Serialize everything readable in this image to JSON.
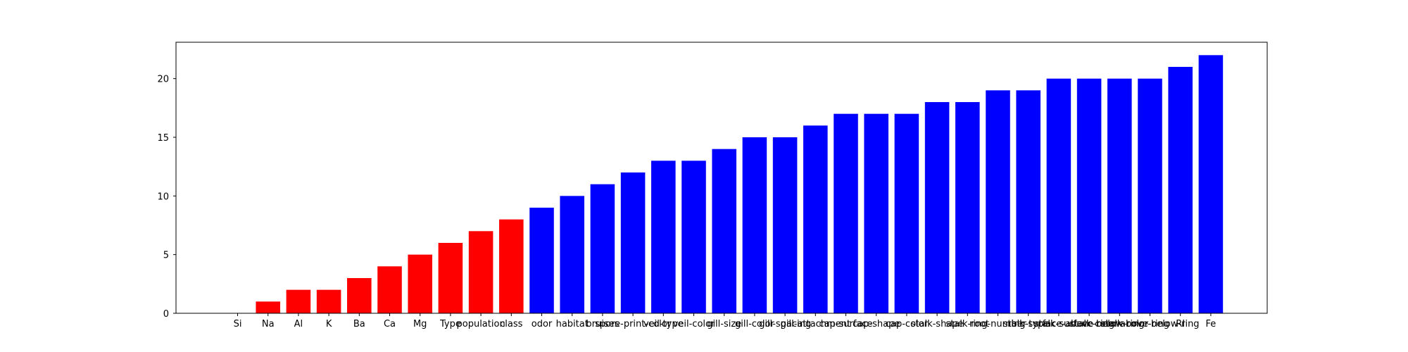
{
  "chart_data": {
    "type": "bar",
    "title": "",
    "xlabel": "",
    "ylabel": "",
    "ylim": [
      0,
      23.1
    ],
    "yticks": [
      0,
      5,
      10,
      15,
      20
    ],
    "grid": false,
    "categories": [
      "Si",
      "Na",
      "Al",
      "K",
      "Ba",
      "Ca",
      "Mg",
      "Type",
      "population",
      "class",
      "odor",
      "habitat",
      "bruises",
      "spore-print-color",
      "veil-type",
      "veil-color",
      "gill-size",
      "gill-color",
      "gill-spacing",
      "gill-attachment",
      "cap-surface",
      "cap-shape",
      "cap-color",
      "stalk-shape",
      "stalk-root",
      "ring-number",
      "ring-type",
      "stalk-surface-above-ring",
      "stalk-surface-below-ring",
      "stalk-color-above-ring",
      "stalk-color-below-ring",
      "RI",
      "Fe"
    ],
    "values": [
      0,
      1,
      2,
      2,
      3,
      4,
      5,
      6,
      7,
      8,
      9,
      10,
      11,
      12,
      13,
      13,
      14,
      15,
      15,
      16,
      17,
      17,
      17,
      18,
      18,
      19,
      19,
      20,
      20,
      20,
      20,
      21,
      22
    ],
    "bar_colors": [
      "#ff0000",
      "#ff0000",
      "#ff0000",
      "#ff0000",
      "#ff0000",
      "#ff0000",
      "#ff0000",
      "#ff0000",
      "#ff0000",
      "#ff0000",
      "#0000ff",
      "#0000ff",
      "#0000ff",
      "#0000ff",
      "#0000ff",
      "#0000ff",
      "#0000ff",
      "#0000ff",
      "#0000ff",
      "#0000ff",
      "#0000ff",
      "#0000ff",
      "#0000ff",
      "#0000ff",
      "#0000ff",
      "#0000ff",
      "#0000ff",
      "#0000ff",
      "#0000ff",
      "#0000ff",
      "#0000ff",
      "#0000ff",
      "#0000ff"
    ]
  }
}
